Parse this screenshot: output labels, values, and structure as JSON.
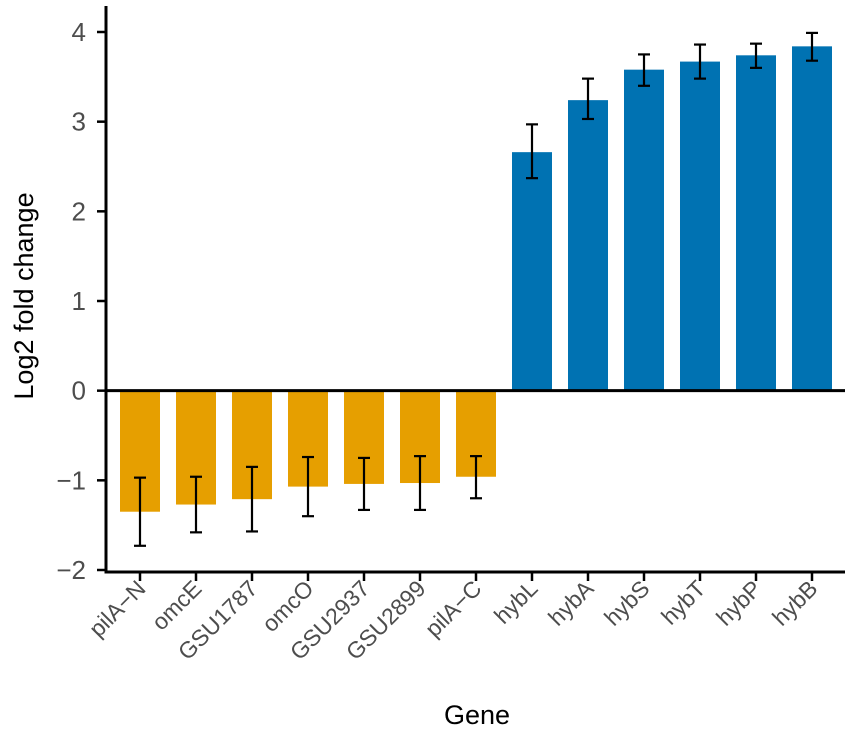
{
  "chart_data": {
    "type": "bar",
    "title": "",
    "xlabel": "Gene",
    "ylabel": "Log2 fold change",
    "ylim": [
      -2,
      4
    ],
    "yticks": [
      -2,
      -1,
      0,
      1,
      2,
      3,
      4
    ],
    "ytick_labels": [
      "−2",
      "−1",
      "0",
      "1",
      "2",
      "3",
      "4"
    ],
    "categories": [
      "pilA−N",
      "omcE",
      "GSU1787",
      "omcO",
      "GSU2937",
      "GSU2899",
      "pilA−C",
      "hybL",
      "hybA",
      "hybS",
      "hybT",
      "hybP",
      "hybB"
    ],
    "values": [
      -1.35,
      -1.27,
      -1.21,
      -1.07,
      -1.04,
      -1.03,
      -0.96,
      2.66,
      3.24,
      3.58,
      3.67,
      3.74,
      3.84
    ],
    "error_low": [
      -1.73,
      -1.58,
      -1.57,
      -1.4,
      -1.33,
      -1.33,
      -1.2,
      2.37,
      3.03,
      3.4,
      3.48,
      3.6,
      3.68
    ],
    "error_high": [
      -0.97,
      -0.96,
      -0.85,
      -0.74,
      -0.75,
      -0.73,
      -0.73,
      2.97,
      3.48,
      3.75,
      3.86,
      3.87,
      3.99
    ],
    "colors": {
      "negative": "#E69F00",
      "positive": "#0072B2"
    },
    "grid": false,
    "legend": "none"
  }
}
